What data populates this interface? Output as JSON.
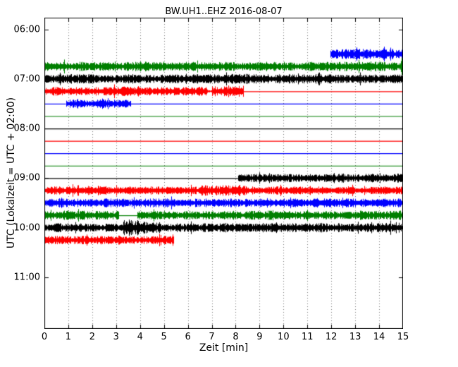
{
  "figure": {
    "background": "#ffffff",
    "border_color": "#000000",
    "tick_color": "#000000",
    "text_color": "#000000"
  },
  "chart_data": {
    "type": "line",
    "chart_kind": "seismic-helicorder-dayplot",
    "title": "BW.UH1..EHZ 2016-08-07",
    "xlabel": "Zeit  [min]",
    "ylabel": "UTC (Lokalzeit = UTC + 02:00)",
    "xlim": [
      0,
      15
    ],
    "x_tick_labels": [
      "0",
      "1",
      "2",
      "3",
      "4",
      "5",
      "6",
      "7",
      "8",
      "9",
      "10",
      "11",
      "12",
      "13",
      "14",
      "15"
    ],
    "y_tick_labels": [
      "06:00",
      "07:00",
      "08:00",
      "09:00",
      "10:00",
      "11:00"
    ],
    "interval_minutes": 15,
    "grid": {
      "vertical_dotted": true,
      "color": "#000000"
    },
    "trace_colors": {
      "black": "#000000",
      "red": "#ff0000",
      "blue": "#0000ff",
      "green": "#007f00"
    },
    "rows": [
      {
        "utc": "06:00",
        "color": "black",
        "segments": [
          {
            "type": "gap",
            "from": 0,
            "to": 15
          }
        ],
        "spikes": []
      },
      {
        "utc": "06:15",
        "color": "red",
        "segments": [
          {
            "type": "gap",
            "from": 0,
            "to": 15
          }
        ],
        "spikes": []
      },
      {
        "utc": "06:30",
        "color": "blue",
        "segments": [
          {
            "type": "gap",
            "from": 0,
            "to": 11.95
          },
          {
            "type": "noise",
            "from": 11.95,
            "to": 15,
            "amp": 4.8
          }
        ],
        "spikes": [
          {
            "t": 12.6,
            "a": 8
          },
          {
            "t": 13.05,
            "a": 10
          },
          {
            "t": 14.2,
            "a": 11
          },
          {
            "t": 14.55,
            "a": 8
          }
        ]
      },
      {
        "utc": "06:45",
        "color": "green",
        "segments": [
          {
            "type": "noise",
            "from": 0,
            "to": 15,
            "amp": 4.6
          }
        ],
        "spikes": [
          {
            "t": 14.95,
            "a": 13
          }
        ]
      },
      {
        "utc": "07:00",
        "color": "black",
        "segments": [
          {
            "type": "noise",
            "from": 0,
            "to": 15,
            "amp": 4.6
          }
        ],
        "spikes": [
          {
            "t": 0.65,
            "a": 9
          },
          {
            "t": 1.9,
            "a": 7
          }
        ]
      },
      {
        "utc": "07:15",
        "color": "red",
        "segments": [
          {
            "type": "noise",
            "from": 0,
            "to": 6.8,
            "amp": 4.6
          },
          {
            "type": "noise",
            "from": 6.8,
            "to": 7.0,
            "amp": 1.6
          },
          {
            "type": "noise",
            "from": 7.0,
            "to": 8.3,
            "amp": 5.2
          },
          {
            "type": "flat",
            "from": 8.3,
            "to": 15
          }
        ],
        "spikes": [
          {
            "t": 7.6,
            "a": 7
          }
        ]
      },
      {
        "utc": "07:30",
        "color": "blue",
        "segments": [
          {
            "type": "flat",
            "from": 0,
            "to": 0.9
          },
          {
            "type": "noise",
            "from": 0.9,
            "to": 3.6,
            "amp": 4.6
          },
          {
            "type": "flat",
            "from": 3.6,
            "to": 15
          }
        ],
        "spikes": []
      },
      {
        "utc": "07:45",
        "color": "green",
        "segments": [
          {
            "type": "flat",
            "from": 0,
            "to": 15
          }
        ],
        "spikes": []
      },
      {
        "utc": "08:00",
        "color": "black",
        "segments": [
          {
            "type": "flat",
            "from": 0,
            "to": 15
          }
        ],
        "spikes": []
      },
      {
        "utc": "08:15",
        "color": "red",
        "segments": [
          {
            "type": "flat",
            "from": 0,
            "to": 15
          }
        ],
        "spikes": []
      },
      {
        "utc": "08:30",
        "color": "blue",
        "segments": [
          {
            "type": "flat",
            "from": 0,
            "to": 15
          }
        ],
        "spikes": []
      },
      {
        "utc": "08:45",
        "color": "green",
        "segments": [
          {
            "type": "flat",
            "from": 0,
            "to": 15
          }
        ],
        "spikes": []
      },
      {
        "utc": "09:00",
        "color": "black",
        "segments": [
          {
            "type": "flat",
            "from": 0,
            "to": 8.1
          },
          {
            "type": "noise",
            "from": 8.1,
            "to": 15,
            "amp": 4.2
          }
        ],
        "spikes": []
      },
      {
        "utc": "09:15",
        "color": "red",
        "segments": [
          {
            "type": "noise",
            "from": 0,
            "to": 6.5,
            "amp": 4.2
          },
          {
            "type": "noise",
            "from": 6.5,
            "to": 8.5,
            "amp": 5.4
          },
          {
            "type": "noise",
            "from": 8.5,
            "to": 15,
            "amp": 4.2
          }
        ],
        "spikes": [
          {
            "t": 8.15,
            "a": 9
          },
          {
            "t": 8.32,
            "a": 7
          }
        ]
      },
      {
        "utc": "09:30",
        "color": "blue",
        "segments": [
          {
            "type": "noise",
            "from": 0,
            "to": 15,
            "amp": 4.4
          }
        ],
        "spikes": [
          {
            "t": 11.4,
            "a": 7
          },
          {
            "t": 11.9,
            "a": 6
          },
          {
            "t": 14.8,
            "a": 6
          }
        ]
      },
      {
        "utc": "09:45",
        "color": "green",
        "segments": [
          {
            "type": "noise",
            "from": 0,
            "to": 3.1,
            "amp": 4.4
          },
          {
            "type": "flat",
            "from": 3.1,
            "to": 3.9
          },
          {
            "type": "noise",
            "from": 3.9,
            "to": 15,
            "amp": 4.5
          }
        ],
        "spikes": []
      },
      {
        "utc": "10:00",
        "color": "black",
        "segments": [
          {
            "type": "noise",
            "from": 0,
            "to": 3.3,
            "amp": 4.4
          },
          {
            "type": "noise",
            "from": 3.3,
            "to": 4.6,
            "amp": 6.5
          },
          {
            "type": "noise",
            "from": 4.6,
            "to": 15,
            "amp": 4.4
          }
        ],
        "spikes": [
          {
            "t": 3.55,
            "a": 11
          },
          {
            "t": 3.9,
            "a": 12
          },
          {
            "t": 4.15,
            "a": 9
          }
        ]
      },
      {
        "utc": "10:15",
        "color": "red",
        "segments": [
          {
            "type": "noise",
            "from": 0,
            "to": 5.4,
            "amp": 4.4
          },
          {
            "type": "gap",
            "from": 5.4,
            "to": 15
          }
        ],
        "spikes": [
          {
            "t": 0.3,
            "a": 6
          },
          {
            "t": 5.0,
            "a": 6
          }
        ]
      }
    ]
  }
}
